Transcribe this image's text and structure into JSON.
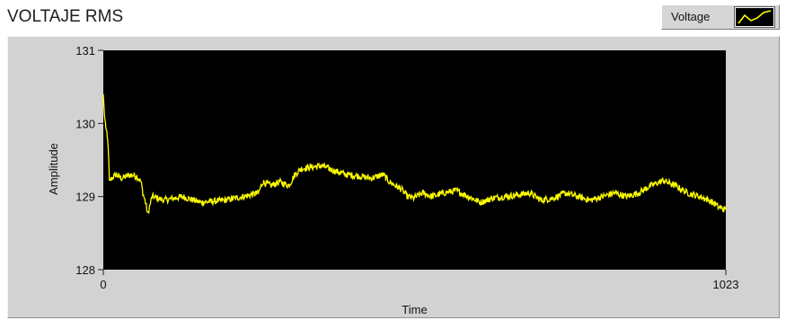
{
  "window": {
    "title": "VOLTAJE RMS"
  },
  "legend": {
    "label": "Voltage",
    "icon": "waveform-plot-icon",
    "colors": {
      "background": "#000000",
      "line": "#ffff00"
    }
  },
  "colors": {
    "plot_background": "#000000",
    "trace": "#ffff00",
    "panel": "#d2d2d2"
  },
  "chart_data": {
    "type": "line",
    "title": "VOLTAJE RMS",
    "xlabel": "Time",
    "ylabel": "Amplitude",
    "xlim": [
      0,
      1023
    ],
    "ylim": [
      128,
      131
    ],
    "x_ticks": [
      "0",
      "1023"
    ],
    "y_ticks": [
      "128",
      "129",
      "130",
      "131"
    ],
    "grid": false,
    "legend_position": "top-right",
    "series": [
      {
        "name": "Voltage",
        "color": "#ffff00",
        "points": [
          [
            0,
            130.4
          ],
          [
            2,
            130.1
          ],
          [
            5,
            129.9
          ],
          [
            8,
            129.7
          ],
          [
            10,
            129.2
          ],
          [
            14,
            129.25
          ],
          [
            20,
            129.3
          ],
          [
            30,
            129.25
          ],
          [
            45,
            129.3
          ],
          [
            55,
            129.28
          ],
          [
            62,
            129.2
          ],
          [
            65,
            129.05
          ],
          [
            70,
            128.9
          ],
          [
            73,
            128.75
          ],
          [
            80,
            129.0
          ],
          [
            100,
            128.95
          ],
          [
            130,
            129.0
          ],
          [
            160,
            128.92
          ],
          [
            200,
            128.95
          ],
          [
            230,
            129.0
          ],
          [
            255,
            129.05
          ],
          [
            262,
            129.2
          ],
          [
            275,
            129.15
          ],
          [
            290,
            129.2
          ],
          [
            305,
            129.15
          ],
          [
            315,
            129.3
          ],
          [
            325,
            129.38
          ],
          [
            340,
            129.4
          ],
          [
            360,
            129.42
          ],
          [
            380,
            129.35
          ],
          [
            400,
            129.3
          ],
          [
            420,
            129.28
          ],
          [
            440,
            129.25
          ],
          [
            460,
            129.3
          ],
          [
            470,
            129.2
          ],
          [
            480,
            129.15
          ],
          [
            490,
            129.1
          ],
          [
            500,
            129.0
          ],
          [
            510,
            128.98
          ],
          [
            525,
            129.05
          ],
          [
            540,
            129.0
          ],
          [
            560,
            129.05
          ],
          [
            580,
            129.08
          ],
          [
            600,
            129.0
          ],
          [
            620,
            128.92
          ],
          [
            640,
            128.98
          ],
          [
            660,
            129.0
          ],
          [
            680,
            129.02
          ],
          [
            700,
            129.05
          ],
          [
            720,
            128.95
          ],
          [
            740,
            128.98
          ],
          [
            760,
            129.05
          ],
          [
            780,
            129.0
          ],
          [
            800,
            128.95
          ],
          [
            820,
            129.0
          ],
          [
            840,
            129.05
          ],
          [
            860,
            129.0
          ],
          [
            880,
            129.05
          ],
          [
            900,
            129.15
          ],
          [
            920,
            129.22
          ],
          [
            940,
            129.15
          ],
          [
            960,
            129.05
          ],
          [
            980,
            129.0
          ],
          [
            995,
            128.95
          ],
          [
            1005,
            128.9
          ],
          [
            1012,
            128.85
          ],
          [
            1023,
            128.82
          ]
        ]
      }
    ]
  }
}
